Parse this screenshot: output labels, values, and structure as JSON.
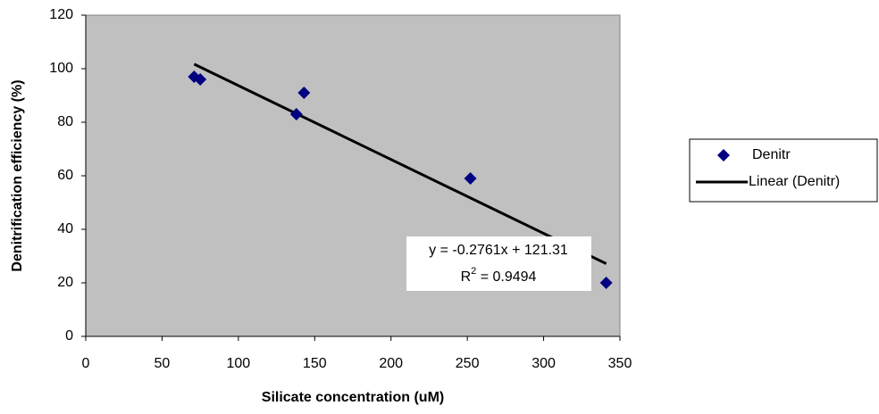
{
  "chart_data": {
    "type": "scatter",
    "x_label": "Silicate concentration (uM)",
    "y_label": "Denitrification efficiency (%)",
    "series": [
      {
        "name": "Denitr",
        "color": "#000080",
        "x": [
          71,
          75,
          138,
          143,
          252,
          341
        ],
        "values": [
          97,
          96,
          83,
          91,
          59,
          20
        ]
      }
    ],
    "trendline": {
      "name": "Linear (Denitr)",
      "color": "#000000",
      "slope": -0.2761,
      "intercept": 121.31,
      "equation": "y = -0.2761x + 121.31",
      "r_squared_symbol": "R",
      "r_squared_exponent": "2",
      "r_squared_text": " = 0.9494"
    },
    "xlim": [
      0,
      350
    ],
    "xticks": [
      0,
      50,
      100,
      150,
      200,
      250,
      300,
      350
    ],
    "ylim": [
      0,
      120
    ],
    "yticks": [
      0,
      20,
      40,
      60,
      80,
      100,
      120
    ],
    "grid": false,
    "plot_background": "#c0c0c0",
    "legend": "right"
  }
}
